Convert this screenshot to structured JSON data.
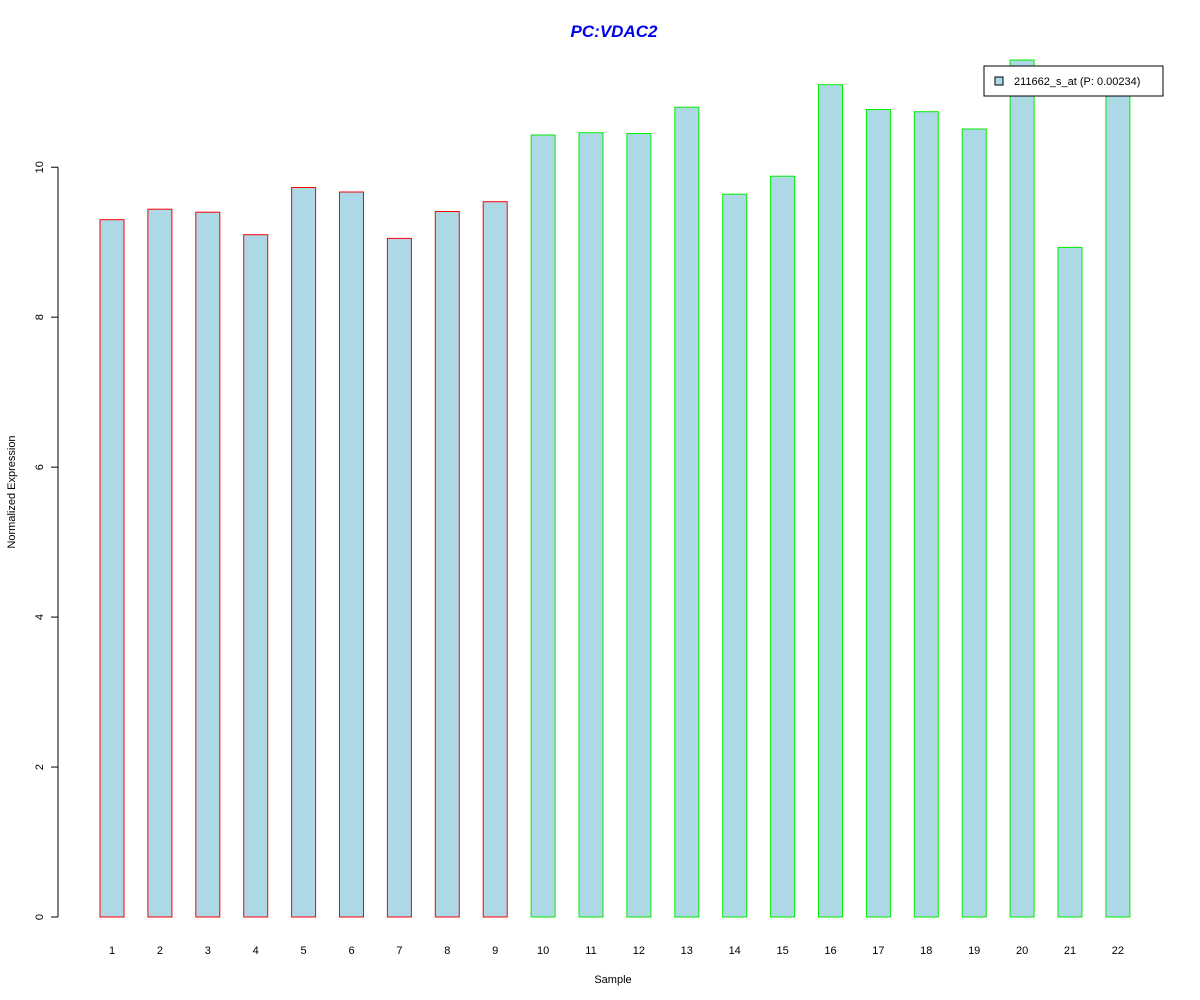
{
  "chart_data": {
    "type": "bar",
    "title": "PC:VDAC2",
    "xlabel": "Sample",
    "ylabel": "Normalized Expression",
    "categories": [
      "1",
      "2",
      "3",
      "4",
      "5",
      "6",
      "7",
      "8",
      "9",
      "10",
      "11",
      "12",
      "13",
      "14",
      "15",
      "16",
      "17",
      "18",
      "19",
      "20",
      "21",
      "22"
    ],
    "series": [
      {
        "name": "211662_s_at (P: 0.00234)",
        "values": [
          9.3,
          9.44,
          9.4,
          9.1,
          9.73,
          9.67,
          9.05,
          9.41,
          9.54,
          10.43,
          10.46,
          10.45,
          10.8,
          9.64,
          9.88,
          11.1,
          10.77,
          10.74,
          10.51,
          11.43,
          8.93,
          10.95
        ]
      }
    ],
    "group_of_sample": [
      "A",
      "A",
      "A",
      "A",
      "A",
      "A",
      "A",
      "A",
      "A",
      "B",
      "B",
      "B",
      "B",
      "B",
      "B",
      "B",
      "B",
      "B",
      "B",
      "B",
      "B",
      "B"
    ],
    "ylim": [
      0,
      11.43
    ],
    "yticks": [
      0,
      2,
      4,
      6,
      8,
      10
    ],
    "legend_placement": "top-right",
    "grid": false,
    "colors": {
      "title": "#0000ee",
      "bar_fill": "#add8e6",
      "group_a_border": "#ff0000",
      "group_b_border": "#00ee00",
      "axis": "#000000"
    }
  }
}
